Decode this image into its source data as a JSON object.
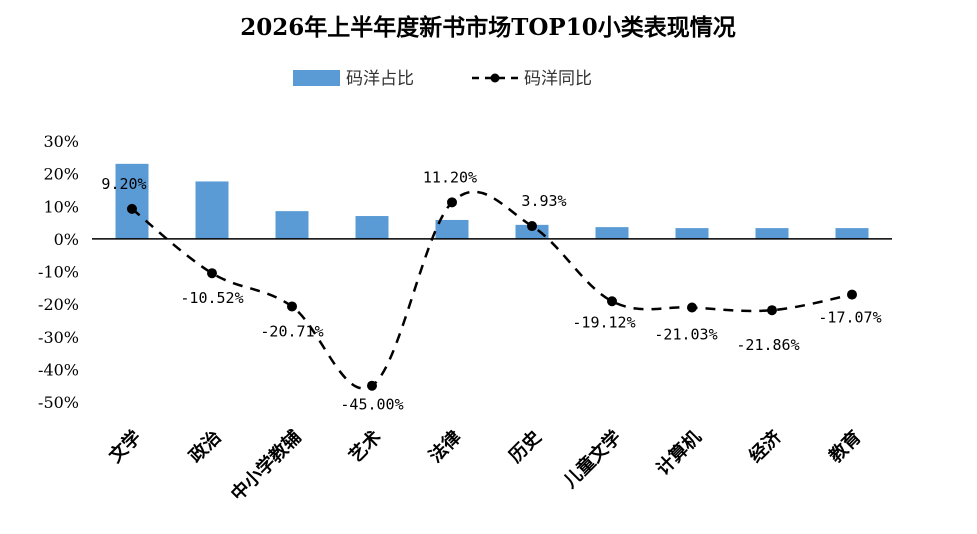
{
  "chart_data": {
    "type": "bar",
    "title": "2026年上半年度新书市场TOP10小类表现情况",
    "categories": [
      "文学",
      "政治",
      "中小学教辅",
      "艺术",
      "法律",
      "历史",
      "儿童文学",
      "计算机",
      "经济",
      "教育"
    ],
    "series": [
      {
        "name": "码洋占比",
        "type": "bar",
        "color": "#5B9BD5",
        "values": [
          23.0,
          17.6,
          8.5,
          7.0,
          5.8,
          4.3,
          3.6,
          3.3,
          3.3,
          3.3
        ]
      },
      {
        "name": "码洋同比",
        "type": "line",
        "style": "dashed",
        "color": "#000000",
        "values": [
          9.2,
          -10.52,
          -20.71,
          -45.0,
          11.2,
          3.93,
          -19.12,
          -21.03,
          -21.86,
          -17.07
        ],
        "labels": [
          "9.20%",
          "-10.52%",
          "-20.71%",
          "-45.00%",
          "11.20%",
          "3.93%",
          "-19.12%",
          "-21.03%",
          "-21.86%",
          "-17.07%"
        ]
      }
    ],
    "yticks": [
      "30%",
      "20%",
      "10%",
      "0%",
      "-10%",
      "-20%",
      "-30%",
      "-40%",
      "-50%"
    ],
    "ylim": [
      -50,
      30
    ],
    "legend_position": "top",
    "grid": false
  }
}
